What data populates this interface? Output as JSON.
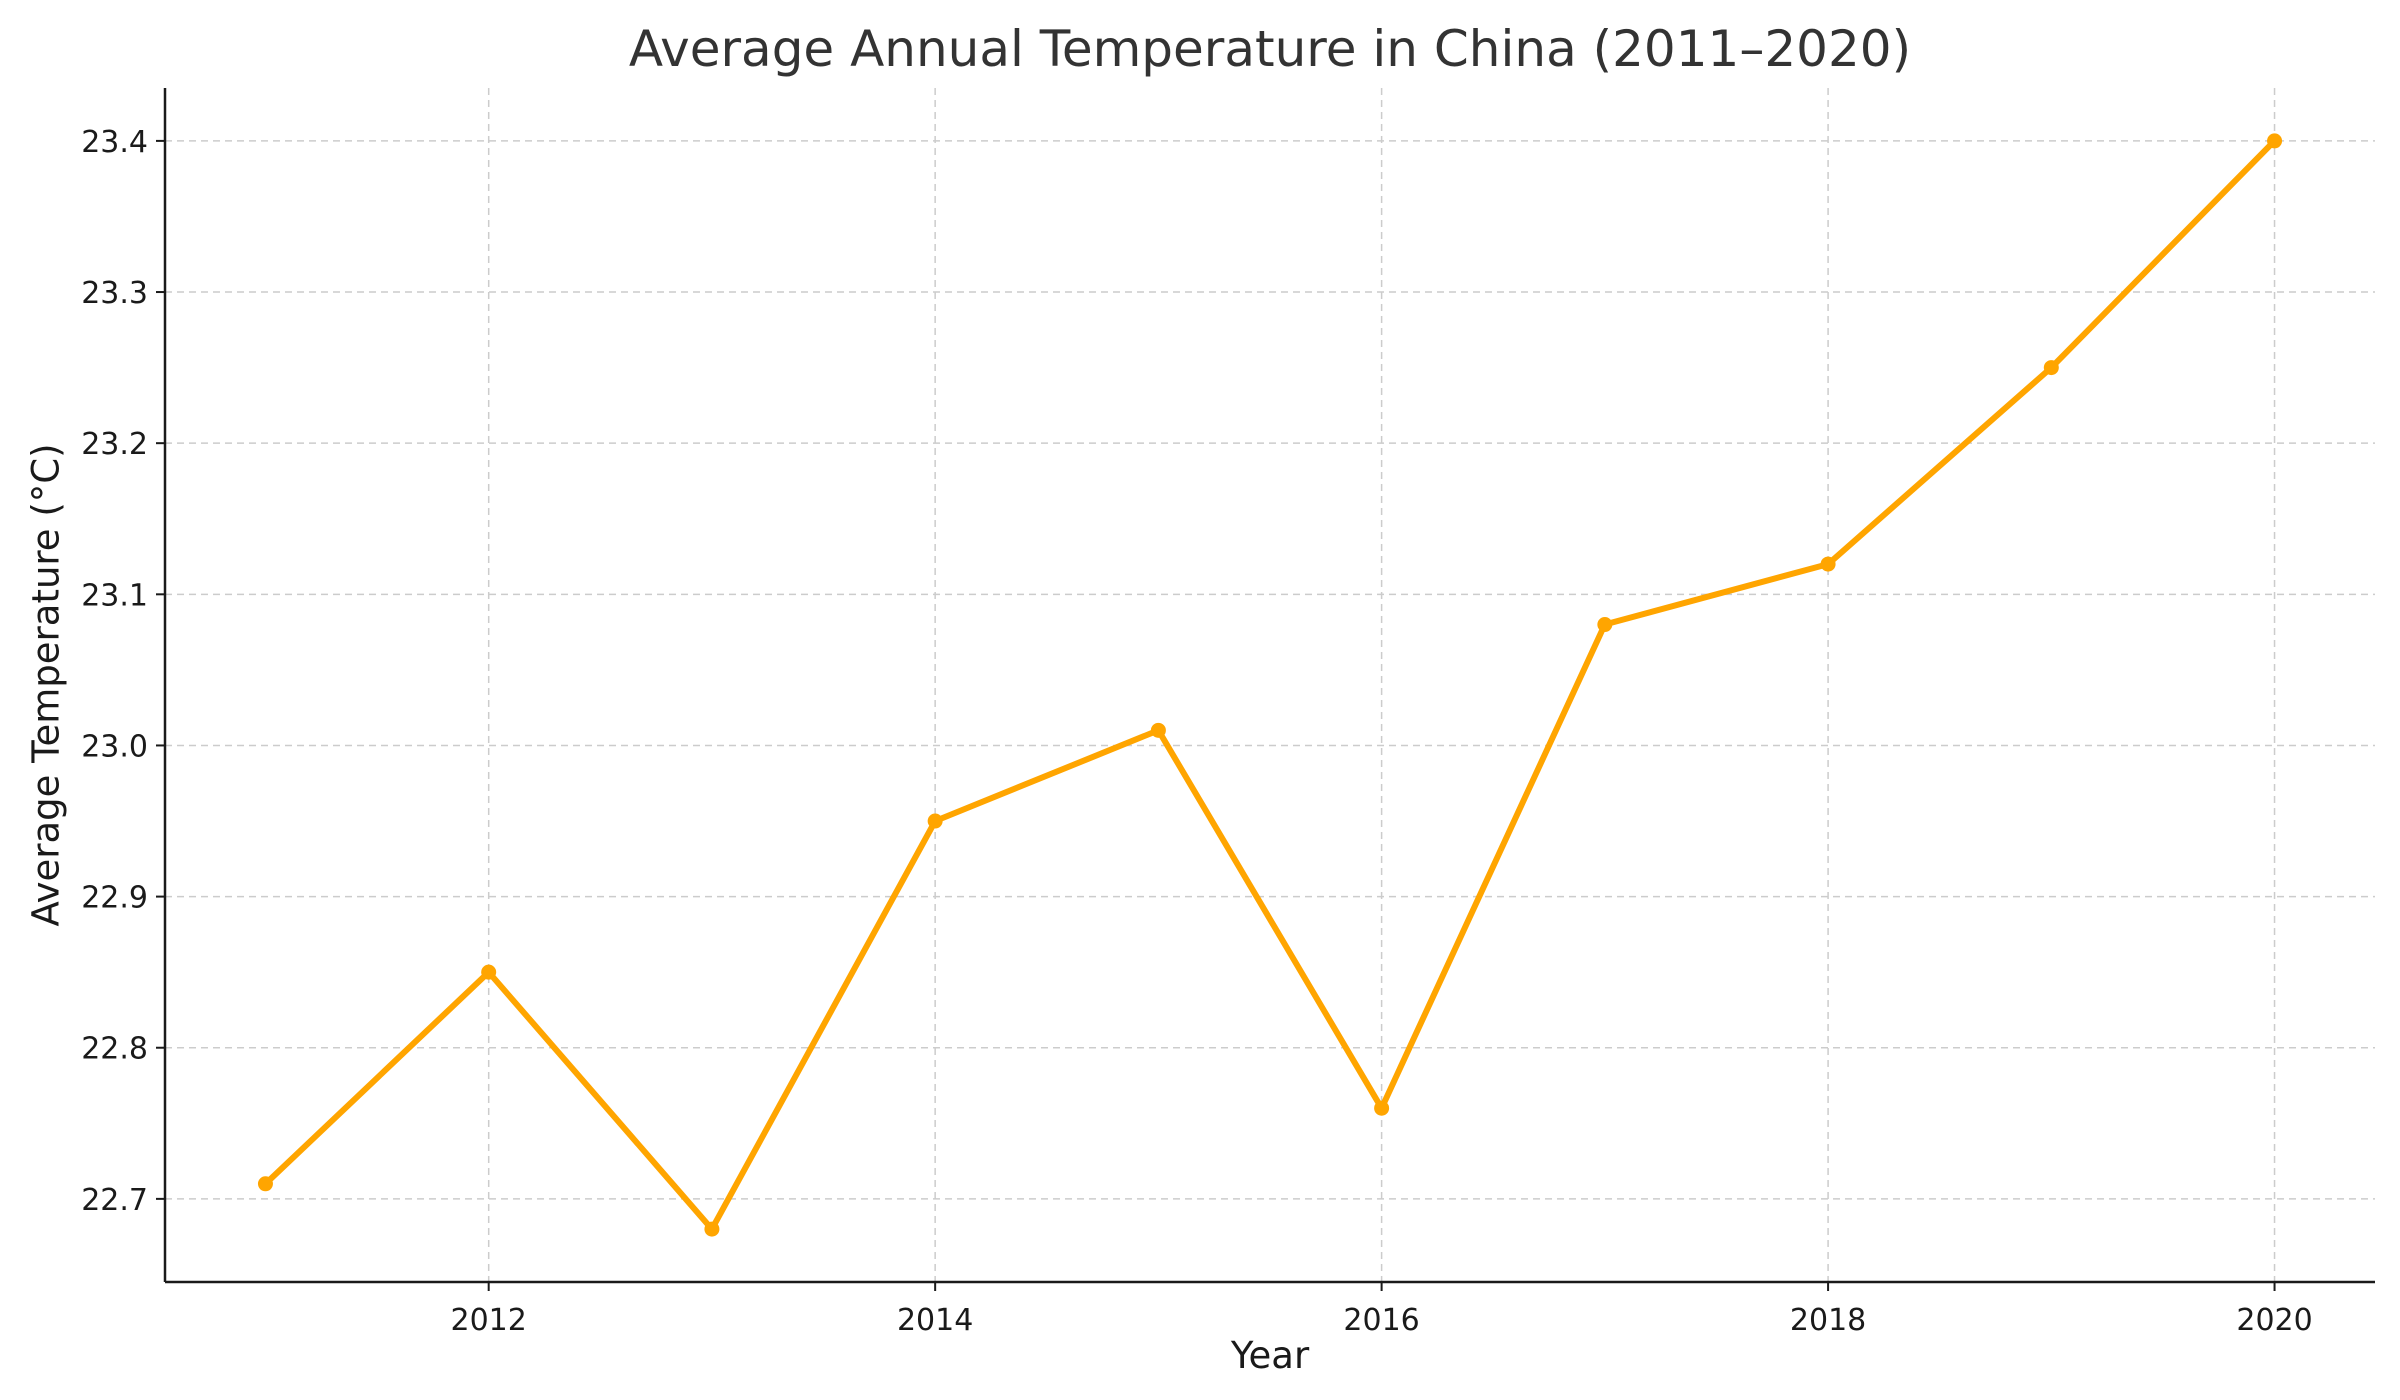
{
  "chart_data": {
    "type": "line",
    "title": "Average Annual Temperature in China (2011–2020)",
    "xlabel": "Year",
    "ylabel": "Average Temperature (°C)",
    "x": [
      2011,
      2012,
      2013,
      2014,
      2015,
      2016,
      2017,
      2018,
      2019,
      2020
    ],
    "xlim": [
      2010.55,
      2020.45
    ],
    "ylim": [
      22.645,
      23.435
    ],
    "x_ticks": [
      2012,
      2014,
      2016,
      2018,
      2020
    ],
    "x_tick_labels": [
      "2012",
      "2014",
      "2016",
      "2018",
      "2020"
    ],
    "y_ticks": [
      22.7,
      22.8,
      22.9,
      23.0,
      23.1,
      23.2,
      23.3,
      23.4
    ],
    "y_tick_labels": [
      "22.7",
      "22.8",
      "22.9",
      "23.0",
      "23.1",
      "23.2",
      "23.3",
      "23.4"
    ],
    "grid": true,
    "series": [
      {
        "color": "#FFA500",
        "marker": "circle",
        "values": [
          22.71,
          22.85,
          22.68,
          22.95,
          23.01,
          22.76,
          23.08,
          23.12,
          23.25,
          23.4
        ]
      }
    ]
  }
}
